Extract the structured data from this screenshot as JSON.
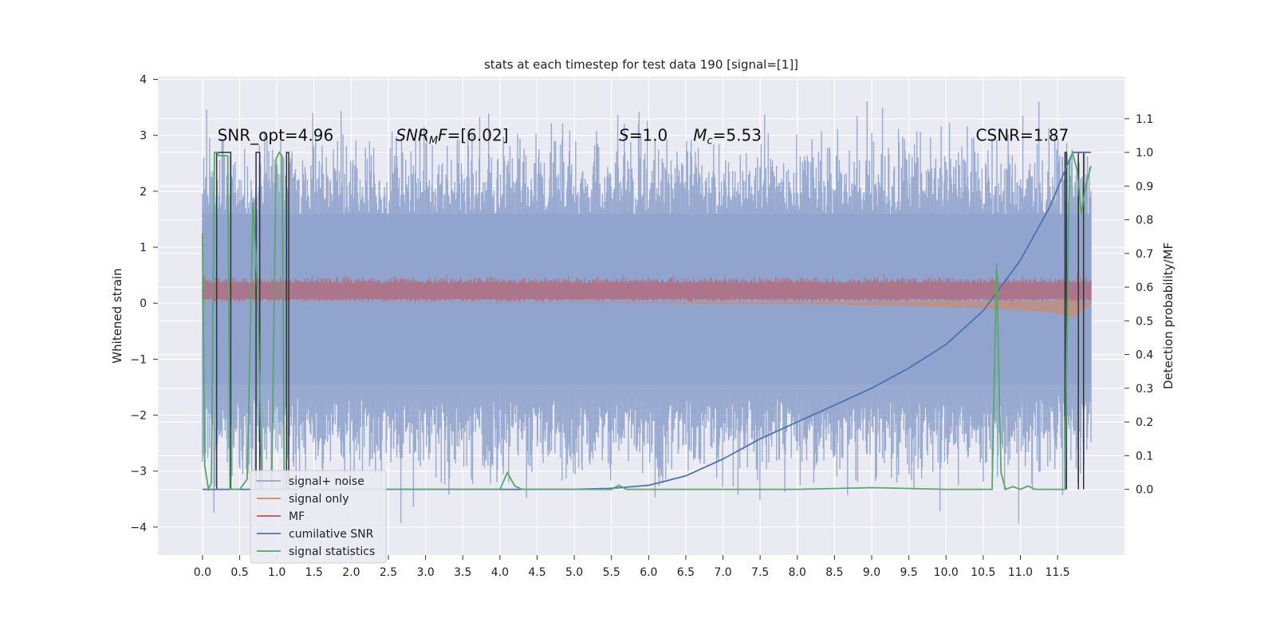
{
  "chart_data": {
    "type": "line",
    "title": "stats at each timestep for test data 190 [signal=[1]]",
    "xlabel": "",
    "ylabel_left": "Whitened strain",
    "ylabel_right": "Detection probability/MF",
    "xlim": [
      -0.6,
      12.4
    ],
    "ylim_left": [
      -4.5,
      4.05
    ],
    "ylim_right": [
      -0.195,
      1.225
    ],
    "x_ticks": [
      "0.0",
      "0.5",
      "1.0",
      "1.5",
      "2.0",
      "2.5",
      "3.0",
      "3.5",
      "4.0",
      "4.5",
      "5.0",
      "5.5",
      "6.0",
      "6.5",
      "7.0",
      "7.5",
      "8.0",
      "8.5",
      "9.0",
      "9.5",
      "10.0",
      "10.5",
      "11.0",
      "11.5"
    ],
    "y_ticks_left": [
      "−4",
      "−3",
      "−2",
      "−1",
      "0",
      "1",
      "2",
      "3",
      "4"
    ],
    "y_ticks_right": [
      "0.0",
      "0.1",
      "0.2",
      "0.3",
      "0.4",
      "0.5",
      "0.6",
      "0.7",
      "0.8",
      "0.9",
      "1.0",
      "1.1"
    ],
    "grid": true,
    "legend_position": "lower-left",
    "annotations": [
      {
        "x": 0.2,
        "y": 2.9,
        "text": "SNR_opt=4.96"
      },
      {
        "x": 2.6,
        "y": 2.9,
        "text": "SNR_MF=[6.02]"
      },
      {
        "x": 5.6,
        "y": 2.9,
        "text": "S=1.0"
      },
      {
        "x": 6.6,
        "y": 2.9,
        "text": "M_c=5.53"
      },
      {
        "x": 10.4,
        "y": 2.9,
        "text": "CSNR=1.87"
      }
    ],
    "series": [
      {
        "name": "signal+ noise",
        "color": "#8fa3cc",
        "axis": "left",
        "style": "noise band",
        "envelope": {
          "x": [
            0,
            1,
            2,
            3,
            4,
            5,
            6,
            7,
            8,
            9,
            10,
            11,
            11.6,
            11.95
          ],
          "upper_typical": 2.4,
          "lower_typical": -2.6,
          "max": 3.6,
          "min": -4.1
        }
      },
      {
        "name": "signal only",
        "color": "#dd8452",
        "axis": "left",
        "style": "chirp band",
        "x": [
          0,
          2,
          4,
          6,
          7,
          8,
          9,
          10,
          10.5,
          11,
          11.5,
          11.7,
          11.95
        ],
        "amplitude": [
          0.01,
          0.01,
          0.015,
          0.02,
          0.03,
          0.04,
          0.06,
          0.09,
          0.11,
          0.14,
          0.2,
          0.28,
          0.05
        ]
      },
      {
        "name": "MF",
        "color": "#c44e52",
        "axis": "left",
        "style": "band",
        "band": [
          0.05,
          0.4
        ]
      },
      {
        "name": "cumilative SNR",
        "color": "#4c72b0",
        "axis": "right",
        "x": [
          0,
          5,
          5.5,
          6,
          6.5,
          7,
          7.5,
          8,
          8.5,
          9,
          9.5,
          10,
          10.5,
          11,
          11.4,
          11.7,
          11.95
        ],
        "values": [
          0.0,
          0.0,
          0.003,
          0.012,
          0.04,
          0.09,
          0.15,
          0.2,
          0.25,
          0.3,
          0.36,
          0.43,
          0.53,
          0.68,
          0.84,
          1.0,
          1.0
        ]
      },
      {
        "name": "signal statistics",
        "color": "#55a868",
        "axis": "right",
        "x": [
          0.0,
          0.03,
          0.08,
          0.12,
          0.16,
          0.2,
          0.22,
          0.34,
          0.37,
          0.5,
          0.6,
          0.68,
          0.74,
          0.8,
          0.87,
          0.93,
          0.99,
          1.03,
          1.07,
          1.1,
          1.16,
          1.25,
          1.4,
          2.0,
          3.0,
          4.0,
          4.1,
          4.2,
          4.3,
          4.5,
          5.0,
          5.5,
          5.6,
          5.7,
          6.0,
          7.0,
          8.0,
          9.0,
          10.0,
          10.5,
          10.62,
          10.68,
          10.74,
          10.8,
          10.9,
          11.0,
          11.1,
          11.2,
          11.5,
          11.6,
          11.66,
          11.7,
          11.76,
          11.82,
          11.88,
          11.95
        ],
        "values": [
          0.76,
          0.07,
          0.0,
          0.02,
          1.0,
          1.0,
          0.99,
          0.99,
          0.0,
          0.0,
          0.03,
          0.85,
          0.6,
          0.0,
          0.0,
          0.0,
          0.98,
          1.0,
          0.99,
          0.0,
          0.0,
          0.0,
          0.0,
          0.0,
          0.0,
          0.0,
          0.05,
          0.01,
          0.0,
          0.0,
          0.0,
          0.0,
          0.012,
          0.0,
          0.0,
          0.0,
          0.0,
          0.005,
          0.0,
          0.0,
          0.0,
          0.67,
          0.05,
          0.0,
          0.008,
          0.0,
          0.01,
          0.0,
          0.0,
          0.0,
          0.97,
          1.0,
          0.95,
          0.82,
          0.9,
          0.96
        ]
      },
      {
        "name": "",
        "color": "#333333",
        "axis": "right",
        "style": "dark pulses",
        "pulses": [
          [
            0.19,
            0.38
          ],
          [
            0.72,
            0.77
          ],
          [
            1.13,
            1.16
          ],
          [
            11.6,
            11.62
          ],
          [
            11.78,
            11.85
          ]
        ]
      }
    ]
  },
  "legend": {
    "items": [
      {
        "label": "signal+ noise",
        "color": "#8fa3cc"
      },
      {
        "label": "signal only",
        "color": "#dd8452"
      },
      {
        "label": "MF",
        "color": "#c44e52"
      },
      {
        "label": "cumilative SNR",
        "color": "#4c72b0"
      },
      {
        "label": "signal statistics",
        "color": "#55a868"
      }
    ]
  },
  "theme": {
    "background": "#eaeaf2",
    "grid": "#ffffff"
  }
}
